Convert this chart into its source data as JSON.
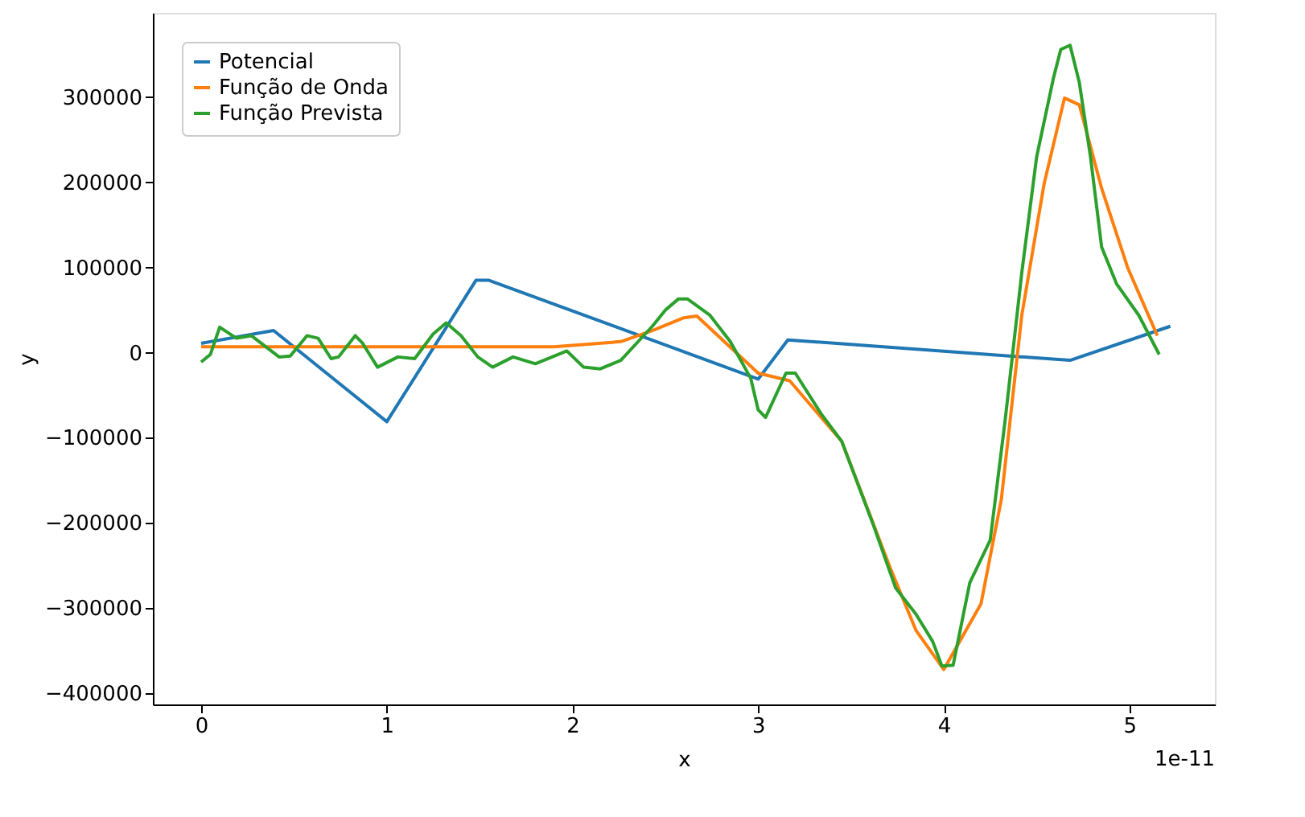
{
  "chart_data": {
    "type": "line",
    "xlabel": "x",
    "ylabel": "y",
    "legend": "top left",
    "grid": false,
    "line_style": "solid",
    "marker": "none",
    "xlim": [
      -0.26,
      5.46
    ],
    "xticks": [
      0,
      1,
      2,
      3,
      4,
      5
    ],
    "ylim": [
      -413000,
      399000
    ],
    "yticks": [
      -400000,
      -300000,
      -200000,
      -100000,
      0,
      100000,
      200000,
      300000
    ],
    "annotations": [
      "1e-11"
    ],
    "series": [
      {
        "name": "Potencial",
        "color": "#1f77b4",
        "x": [
          0,
          0.39,
          1.0,
          1.48,
          1.55,
          3.0,
          3.16,
          4.68,
          5.22
        ],
        "values": [
          11000,
          26000,
          -81000,
          85000,
          85000,
          -31000,
          15000,
          -9000,
          31000
        ]
      },
      {
        "name": "Função de Onda",
        "color": "#ff7f0e",
        "x": [
          0,
          1.0,
          1.9,
          2.26,
          2.43,
          2.6,
          2.67,
          3.0,
          3.17,
          3.45,
          3.71,
          3.85,
          4.0,
          4.2,
          4.31,
          4.42,
          4.54,
          4.65,
          4.73,
          4.85,
          4.99,
          5.15
        ],
        "values": [
          7000,
          7000,
          7000,
          13000,
          26000,
          41000,
          43000,
          -24000,
          -33000,
          -104000,
          -252000,
          -326000,
          -372000,
          -295000,
          -172000,
          44000,
          198000,
          299000,
          291000,
          193000,
          100000,
          20000
        ]
      },
      {
        "name": "Função Prevista",
        "color": "#2ca02c",
        "x": [
          0,
          0.05,
          0.1,
          0.19,
          0.27,
          0.42,
          0.48,
          0.57,
          0.63,
          0.7,
          0.74,
          0.83,
          0.87,
          0.95,
          1.06,
          1.15,
          1.25,
          1.32,
          1.4,
          1.49,
          1.57,
          1.68,
          1.8,
          1.97,
          2.06,
          2.15,
          2.26,
          2.43,
          2.5,
          2.57,
          2.62,
          2.74,
          2.85,
          2.96,
          3.0,
          3.04,
          3.15,
          3.2,
          3.34,
          3.45,
          3.62,
          3.74,
          3.85,
          3.94,
          3.99,
          4.05,
          4.14,
          4.25,
          4.33,
          4.42,
          4.5,
          4.59,
          4.63,
          4.68,
          4.73,
          4.79,
          4.85,
          4.93,
          5.05,
          5.16
        ],
        "values": [
          -11000,
          -2000,
          30000,
          17000,
          20000,
          -5000,
          -4000,
          20000,
          17000,
          -7000,
          -5000,
          20000,
          11000,
          -17000,
          -5000,
          -7000,
          22000,
          35000,
          20000,
          -5000,
          -17000,
          -5000,
          -13000,
          2000,
          -17000,
          -19000,
          -9000,
          31000,
          50000,
          63000,
          63000,
          44000,
          13000,
          -30000,
          -67000,
          -76000,
          -24000,
          -24000,
          -72000,
          -104000,
          -202000,
          -276000,
          -307000,
          -339000,
          -368000,
          -367000,
          -270000,
          -220000,
          -80000,
          94000,
          230000,
          322000,
          356000,
          361000,
          317000,
          230000,
          124000,
          81000,
          44000,
          -2000
        ]
      }
    ]
  }
}
